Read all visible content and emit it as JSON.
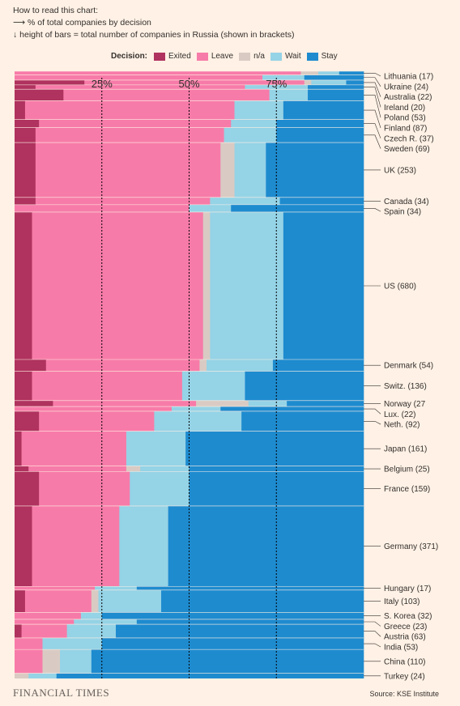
{
  "howto": {
    "title": "How to read this chart:",
    "line1": "⟶ % of total companies by decision",
    "line2": "↓ height of bars = total number of companies in Russia (shown in brackets)"
  },
  "legend": {
    "title": "Decision:",
    "items": [
      {
        "label": "Exited",
        "color": "#b0325e"
      },
      {
        "label": "Leave",
        "color": "#f77ba8"
      },
      {
        "label": "n/a",
        "color": "#d9cbc3"
      },
      {
        "label": "Wait",
        "color": "#95d3e6"
      },
      {
        "label": "Stay",
        "color": "#1e8bcf"
      }
    ]
  },
  "chart_data": {
    "type": "bar",
    "subtype": "marimekko (horizontal, variable height)",
    "xlim": [
      0,
      100
    ],
    "x_unit": "% of total companies by decision",
    "reference_lines": [
      {
        "value": 25,
        "label": "25%"
      },
      {
        "value": 50,
        "label": "50%"
      },
      {
        "value": 75,
        "label": "75%"
      }
    ],
    "series_order": [
      "Exited",
      "Leave",
      "n/a",
      "Wait",
      "Stay"
    ],
    "rows": [
      {
        "label": "Lithuania (17)",
        "total": 17,
        "values": [
          0,
          82,
          5,
          6,
          7
        ]
      },
      {
        "label": "Ukraine (24)",
        "total": 24,
        "values": [
          0,
          71,
          0,
          12,
          17
        ]
      },
      {
        "label": "Australia (22)",
        "total": 22,
        "values": [
          20,
          63,
          2,
          10,
          5
        ]
      },
      {
        "label": "Ireland (20)",
        "total": 20,
        "values": [
          6,
          60,
          0,
          18,
          16
        ]
      },
      {
        "label": "Poland (53)",
        "total": 53,
        "values": [
          14,
          59,
          0,
          11,
          16
        ]
      },
      {
        "label": "Finland (87)",
        "total": 87,
        "values": [
          3,
          60,
          0,
          14,
          23
        ]
      },
      {
        "label": "Czech R. (37)",
        "total": 37,
        "values": [
          7,
          55,
          0,
          13,
          25
        ]
      },
      {
        "label": "Sweden (69)",
        "total": 69,
        "values": [
          6,
          54,
          0,
          15,
          25
        ]
      },
      {
        "label": "UK (253)",
        "total": 253,
        "values": [
          6,
          53,
          4,
          9,
          28
        ]
      },
      {
        "label": "Canada (34)",
        "total": 34,
        "values": [
          6,
          50,
          0,
          20,
          24
        ]
      },
      {
        "label": "Spain (34)",
        "total": 34,
        "values": [
          0,
          50,
          0,
          12,
          38
        ]
      },
      {
        "label": "US (680)",
        "total": 680,
        "values": [
          5,
          49,
          2,
          21,
          23
        ]
      },
      {
        "label": "Denmark (54)",
        "total": 54,
        "values": [
          9,
          44,
          2,
          19,
          26
        ]
      },
      {
        "label": "Switz. (136)",
        "total": 136,
        "values": [
          5,
          43,
          0,
          18,
          34
        ]
      },
      {
        "label": "Norway (27",
        "total": 27,
        "values": [
          11,
          41,
          15,
          11,
          22
        ]
      },
      {
        "label": "Lux. (22)",
        "total": 22,
        "values": [
          0,
          45,
          0,
          14,
          41
        ]
      },
      {
        "label": "Neth. (92)",
        "total": 92,
        "values": [
          7,
          33,
          0,
          25,
          35
        ]
      },
      {
        "label": "Japan (161)",
        "total": 161,
        "values": [
          2,
          30,
          0,
          17,
          51
        ]
      },
      {
        "label": "Belgium (25)",
        "total": 25,
        "values": [
          4,
          28,
          4,
          14,
          50
        ]
      },
      {
        "label": "France (159)",
        "total": 159,
        "values": [
          7,
          26,
          0,
          17,
          50
        ]
      },
      {
        "label": "Germany (371)",
        "total": 371,
        "values": [
          5,
          25,
          0,
          14,
          56
        ]
      },
      {
        "label": "Hungary (17)",
        "total": 17,
        "values": [
          0,
          23,
          0,
          12,
          65
        ]
      },
      {
        "label": "Italy (103)",
        "total": 103,
        "values": [
          3,
          19,
          2,
          18,
          58
        ]
      },
      {
        "label": "S. Korea (32)",
        "total": 32,
        "values": [
          0,
          19,
          0,
          6,
          75
        ]
      },
      {
        "label": "Greece (23)",
        "total": 23,
        "values": [
          0,
          17,
          0,
          18,
          65
        ]
      },
      {
        "label": "Austria (63)",
        "total": 63,
        "values": [
          2,
          13,
          0,
          14,
          71
        ]
      },
      {
        "label": "India (53)",
        "total": 53,
        "values": [
          0,
          8,
          0,
          17,
          75
        ]
      },
      {
        "label": "China (110)",
        "total": 110,
        "values": [
          0,
          8,
          5,
          9,
          78
        ]
      },
      {
        "label": "Turkey (24)",
        "total": 24,
        "values": [
          0,
          0,
          4,
          8,
          88
        ]
      }
    ]
  },
  "footer": {
    "brand": "FINANCIAL TIMES",
    "source": "Source: KSE Institute"
  }
}
